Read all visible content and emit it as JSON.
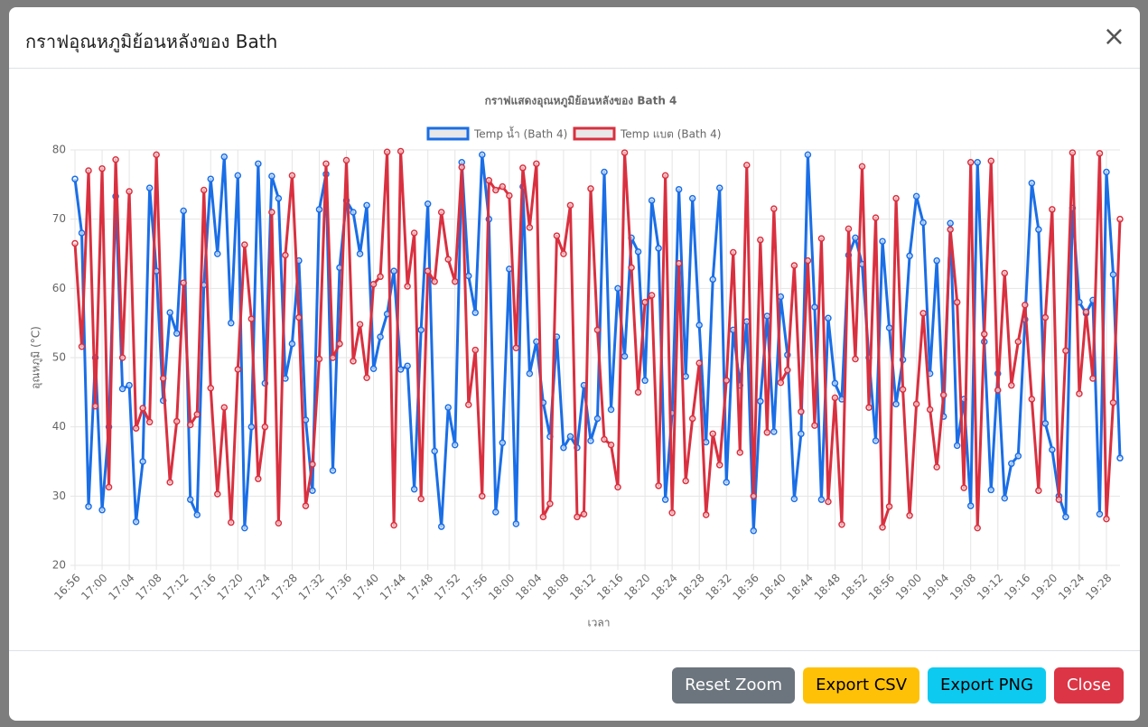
{
  "modal": {
    "title": "กราฟอุณหภูมิย้อนหลังของ Bath",
    "buttons": [
      "Reset Zoom",
      "Export CSV",
      "Export PNG",
      "Close"
    ]
  },
  "chart_data": {
    "type": "line",
    "title": "กราฟแสดงอุณหภูมิย้อนหลังของ Bath 4",
    "x_label": "เวลา",
    "y_label": "อุณหภูมิ (°C)",
    "ylim": [
      20,
      80
    ],
    "yticks": [
      20,
      30,
      40,
      50,
      60,
      70,
      80
    ],
    "grid": true,
    "legend": "top",
    "categories": [
      "16:56",
      null,
      null,
      null,
      "17:00",
      null,
      null,
      null,
      "17:04",
      null,
      null,
      null,
      "17:08",
      null,
      null,
      null,
      "17:12",
      null,
      null,
      null,
      "17:16",
      null,
      null,
      null,
      "17:20",
      null,
      null,
      null,
      "17:24",
      null,
      null,
      null,
      "17:28",
      null,
      null,
      null,
      "17:32",
      null,
      null,
      null,
      "17:36",
      null,
      null,
      null,
      "17:40",
      null,
      null,
      null,
      "17:44",
      null,
      null,
      null,
      "17:48",
      null,
      null,
      null,
      "17:52",
      null,
      null,
      null,
      "17:56",
      null,
      null,
      null,
      "18:00",
      null,
      null,
      null,
      "18:04",
      null,
      null,
      null,
      "18:08",
      null,
      null,
      null,
      "18:12",
      null,
      null,
      null,
      "18:16",
      null,
      null,
      null,
      "18:20",
      null,
      null,
      null,
      "18:24",
      null,
      null,
      null,
      "18:28",
      null,
      null,
      null,
      "18:32",
      null,
      null,
      null,
      "18:36",
      null,
      null,
      null,
      "18:40",
      null,
      null,
      null,
      "18:44",
      null,
      null,
      null,
      "18:48",
      null,
      null,
      null,
      "18:52",
      null,
      null,
      null,
      "18:56",
      null,
      null,
      null,
      "19:00",
      null,
      null,
      null,
      "19:04",
      null,
      null,
      null,
      "19:08",
      null,
      null,
      null,
      "19:12",
      null,
      null,
      null,
      "19:16",
      null,
      null,
      null,
      "19:20",
      null,
      null,
      null,
      "19:24",
      null,
      null,
      null,
      "19:28",
      null,
      null
    ],
    "series": [
      {
        "name": "Temp น้ำ (Bath 4)",
        "color": "#1a6ee6",
        "values": [
          75.8,
          68,
          28.5,
          50,
          28,
          40,
          73.3,
          45.5,
          46,
          26.3,
          35,
          74.5,
          62.5,
          43.8,
          56.5,
          53.5,
          71.2,
          29.5,
          27.3,
          60.5,
          75.8,
          65,
          79,
          55,
          76.3,
          25.4,
          40,
          78,
          46.3,
          76.2,
          73,
          47,
          52,
          64,
          41,
          30.8,
          71.4,
          76.5,
          33.7,
          63,
          72.7,
          71,
          65,
          72,
          48.4,
          53,
          56.3,
          62.5,
          48.3,
          48.8,
          31,
          54,
          72.2,
          36.5,
          25.6,
          42.8,
          37.4,
          78.2,
          61.8,
          56.5,
          79.3,
          70,
          27.7,
          37.7,
          62.8,
          26,
          74.7,
          47.7,
          52.3,
          43.5,
          38.6,
          53,
          37,
          38.6,
          37,
          46,
          38,
          41.2,
          76.8,
          42.5,
          60,
          50.2,
          67.3,
          65.3,
          46.7,
          72.7,
          65.8,
          29.5,
          42,
          74.3,
          47.3,
          73,
          54.7,
          37.8,
          61.3,
          74.5,
          32,
          54,
          46,
          55.2,
          25,
          43.7,
          56,
          39.3,
          58.8,
          50.4,
          29.6,
          39,
          79.3,
          57.3,
          29.5,
          55.7,
          46.3,
          44,
          64.8,
          67.3,
          63.5,
          50,
          38,
          66.8,
          54.3,
          43.3,
          49.7,
          64.7,
          73.3,
          69.5,
          47.7,
          64,
          41.5,
          69.4,
          37.3,
          44,
          28.6,
          78.2,
          52.3,
          30.9,
          47.7,
          29.7,
          34.7,
          35.8,
          55.5,
          75.2,
          68.5,
          40.5,
          36.7,
          30,
          27,
          71.6,
          58,
          56.4,
          58.3,
          27.4,
          76.8,
          62,
          35.5
        ]
      },
      {
        "name": "Temp แบต (Bath 4)",
        "color": "#d9303f",
        "values": [
          66.5,
          51.6,
          77,
          43,
          77.3,
          31.3,
          78.6,
          50,
          74,
          39.8,
          42.7,
          40.7,
          79.3,
          47,
          32,
          40.8,
          60.8,
          40.3,
          41.8,
          74.2,
          45.6,
          30.3,
          42.8,
          26.2,
          48.3,
          66.3,
          55.6,
          32.5,
          40,
          71,
          26.1,
          64.8,
          76.3,
          55.8,
          28.6,
          34.6,
          49.8,
          78,
          50,
          52,
          78.5,
          49.5,
          54.8,
          47.1,
          60.6,
          61.7,
          79.7,
          25.8,
          79.8,
          60.3,
          68,
          29.6,
          62.5,
          61,
          71,
          64.2,
          61,
          77.5,
          43.2,
          51.1,
          30,
          75.6,
          74.2,
          74.7,
          73.4,
          51.4,
          77.4,
          68.8,
          78,
          27,
          28.9,
          67.6,
          65,
          72,
          27,
          27.4,
          74.4,
          54,
          38.2,
          37.4,
          31.3,
          79.6,
          63,
          45,
          58,
          59,
          31.5,
          76.3,
          27.6,
          63.6,
          32.2,
          41.2,
          49.2,
          27.3,
          39,
          34.5,
          46.7,
          65.2,
          36.3,
          77.8,
          30,
          67,
          39.2,
          71.5,
          46.4,
          48.2,
          63.3,
          42.2,
          64,
          40.2,
          67.2,
          29.2,
          44.2,
          25.9,
          68.6,
          49.8,
          77.6,
          42.8,
          70.2,
          25.5,
          28.5,
          73,
          45.4,
          27.2,
          43.3,
          56.4,
          42.5,
          34.2,
          44.6,
          68.5,
          58,
          31.2,
          78.2,
          25.4,
          53.4,
          78.4,
          45.3,
          62.2,
          46,
          52.3,
          57.6,
          44,
          30.8,
          55.8,
          71.4,
          29.5,
          51,
          79.6,
          44.8,
          56.6,
          47,
          79.5,
          26.7,
          43.5,
          70
        ]
      }
    ]
  }
}
